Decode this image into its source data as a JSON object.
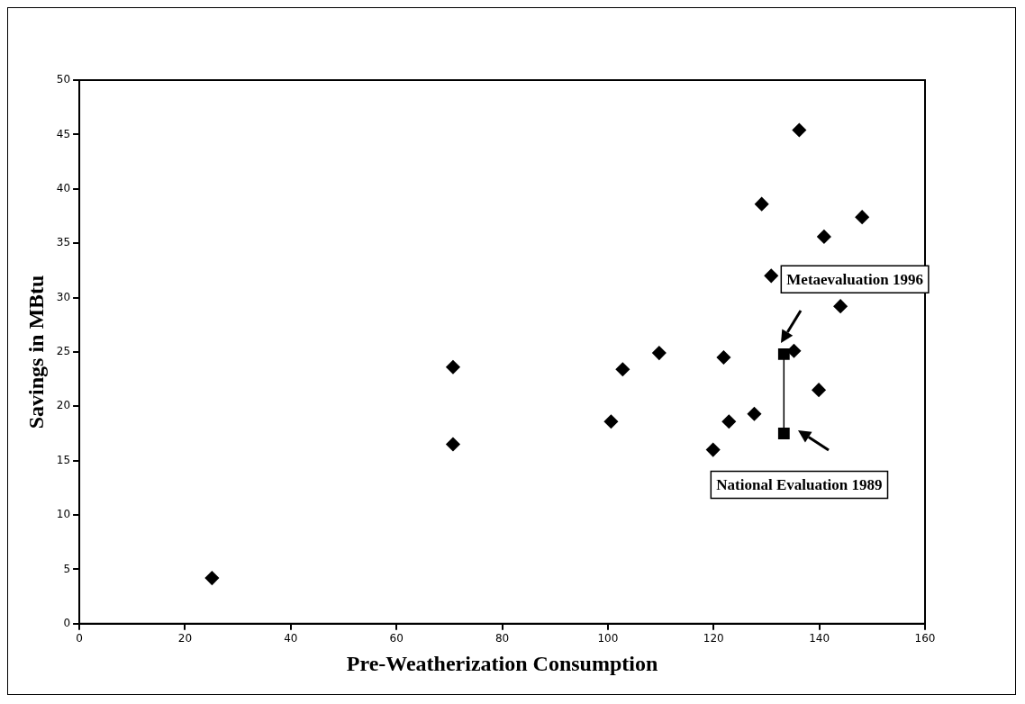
{
  "chart_data": {
    "type": "scatter",
    "xlabel": "Pre-Weatherization Consumption",
    "ylabel": "Savings in MBtu",
    "xlim": [
      0,
      160
    ],
    "xticks": [
      0,
      20,
      40,
      60,
      80,
      100,
      120,
      140,
      160
    ],
    "ylim": [
      0,
      50
    ],
    "yticks": [
      0,
      5,
      10,
      15,
      20,
      25,
      30,
      35,
      40,
      45,
      50
    ],
    "grid": false,
    "series": [
      {
        "type": "scatter",
        "marker": "diamond",
        "color": "#000000",
        "x": [
          25.1,
          70.7,
          70.7,
          100.6,
          102.8,
          109.7,
          119.9,
          121.9,
          122.9,
          127.7,
          129.1,
          130.9,
          135.2,
          136.2,
          139.9,
          140.9,
          144.0,
          148.1
        ],
        "values": [
          4.2,
          23.6,
          16.5,
          18.6,
          23.4,
          24.9,
          16.0,
          24.5,
          18.6,
          19.3,
          38.6,
          32.0,
          25.1,
          45.4,
          21.5,
          35.6,
          29.2,
          37.4
        ]
      },
      {
        "type": "line",
        "marker": "square",
        "color": "#000000",
        "x": [
          133.3,
          133.3
        ],
        "values": [
          24.8,
          17.5
        ]
      }
    ],
    "annotations": [
      "Metaevaluation 1996",
      "National Evaluation 1989"
    ]
  }
}
